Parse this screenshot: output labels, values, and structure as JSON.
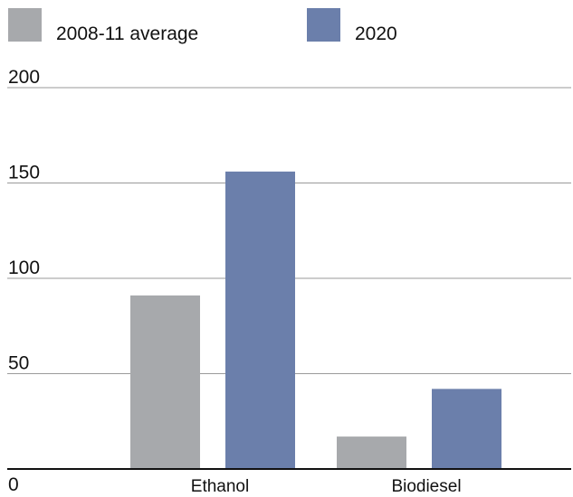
{
  "chart_data": {
    "type": "bar",
    "categories": [
      "Ethanol",
      "Biodiesel"
    ],
    "series": [
      {
        "name": "2008-11 average",
        "values": [
          91,
          17
        ],
        "color": "#a7a9ac"
      },
      {
        "name": "2020",
        "values": [
          156,
          42
        ],
        "color": "#6b7fab"
      }
    ],
    "ylim": [
      0,
      200
    ],
    "yticks": [
      "0",
      "50",
      "100",
      "150",
      "200"
    ],
    "grid": true,
    "legend": "top-left",
    "title": "",
    "xlabel": "",
    "ylabel": ""
  }
}
